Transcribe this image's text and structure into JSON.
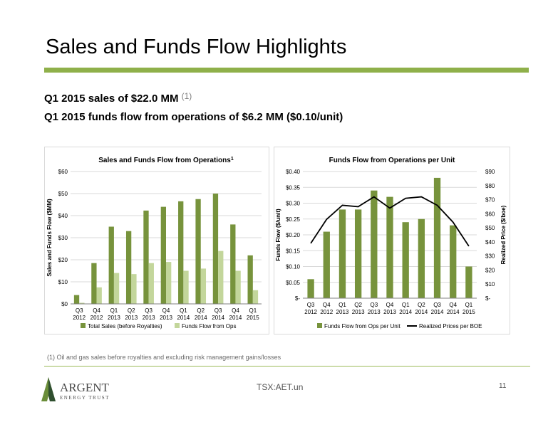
{
  "slide": {
    "title": "Sales and Funds Flow Highlights",
    "bullet1": "Q1 2015 sales of $22.0 MM",
    "bullet1_ref": "(1)",
    "bullet2": "Q1 2015 funds flow from operations of $6.2 MM ($0.10/unit)",
    "footnote": "(1)   Oil and gas sales before royalties and excluding risk management gains/losses",
    "logo_main": "ARGENT",
    "logo_sub": "ENERGY TRUST",
    "ticker": "TSX:AET.un",
    "page_number": "11"
  },
  "colors": {
    "accent": "#8fb04a",
    "dark_green": "#77933c",
    "light_green": "#c3d69b",
    "line": "#000000"
  },
  "chart_data": [
    {
      "type": "bar",
      "title": "Sales and Funds Flow from Operations",
      "title_sup": "1",
      "ylabel": "Sales and Funds Flow ($MM)",
      "categories": [
        [
          "Q3",
          "2012"
        ],
        [
          "Q4",
          "2012"
        ],
        [
          "Q1",
          "2013"
        ],
        [
          "Q2",
          "2013"
        ],
        [
          "Q3",
          "2013"
        ],
        [
          "Q4",
          "2013"
        ],
        [
          "Q1",
          "2014"
        ],
        [
          "Q2",
          "2014"
        ],
        [
          "Q3",
          "2014"
        ],
        [
          "Q4",
          "2014"
        ],
        [
          "Q1",
          "2015"
        ]
      ],
      "ylim": [
        0,
        60
      ],
      "yticks": [
        0,
        10,
        20,
        30,
        40,
        50,
        60
      ],
      "ytick_labels": [
        "$0",
        "$10",
        "$20",
        "$30",
        "$40",
        "$50",
        "$60"
      ],
      "grid": true,
      "legend": "bottom",
      "series": [
        {
          "name": "Total Sales (before Royalties)",
          "color": "#77933c",
          "values": [
            4,
            18.5,
            35,
            33,
            42.3,
            44,
            46.5,
            47.5,
            50,
            36,
            22
          ]
        },
        {
          "name": "Funds Flow from Ops",
          "color": "#c3d69b",
          "values": [
            0.5,
            7.5,
            14,
            13.5,
            18.5,
            19,
            15,
            16,
            24,
            15,
            6.2
          ]
        }
      ]
    },
    {
      "type": "bar+line",
      "title": "Funds Flow from Operations per Unit",
      "ylabel": "Funds Flow ($/unit)",
      "y2label": "Realized Price ($/boe)",
      "categories": [
        [
          "Q3",
          "2012"
        ],
        [
          "Q4",
          "2012"
        ],
        [
          "Q1",
          "2013"
        ],
        [
          "Q2",
          "2013"
        ],
        [
          "Q3",
          "2013"
        ],
        [
          "Q4",
          "2013"
        ],
        [
          "Q1",
          "2014"
        ],
        [
          "Q2",
          "2014"
        ],
        [
          "Q3",
          "2014"
        ],
        [
          "Q4",
          "2014"
        ],
        [
          "Q1",
          "2015"
        ]
      ],
      "ylim": [
        0,
        0.4
      ],
      "y2lim": [
        0,
        90
      ],
      "yticks": [
        0,
        0.05,
        0.1,
        0.15,
        0.2,
        0.25,
        0.3,
        0.35,
        0.4
      ],
      "ytick_labels": [
        "$-",
        "$0.05",
        "$0.10",
        "$0.15",
        "$0.20",
        "$0.25",
        "$0.30",
        "$0.35",
        "$0.40"
      ],
      "y2ticks": [
        0,
        10,
        20,
        30,
        40,
        50,
        60,
        70,
        80,
        90
      ],
      "y2tick_labels": [
        "$-",
        "$10",
        "$20",
        "$30",
        "$40",
        "$50",
        "$60",
        "$70",
        "$80",
        "$90"
      ],
      "grid": true,
      "legend": "bottom",
      "series": [
        {
          "name": "Funds Flow from Ops per Unit",
          "kind": "bar",
          "axis": "left",
          "color": "#77933c",
          "values": [
            0.06,
            0.21,
            0.28,
            0.28,
            0.34,
            0.32,
            0.24,
            0.25,
            0.38,
            0.23,
            0.1
          ]
        },
        {
          "name": "Realized Prices per BOE",
          "kind": "line",
          "axis": "right",
          "color": "#000000",
          "values": [
            39,
            56,
            66,
            65,
            72,
            64,
            71,
            72,
            66,
            54,
            37
          ]
        }
      ]
    }
  ]
}
